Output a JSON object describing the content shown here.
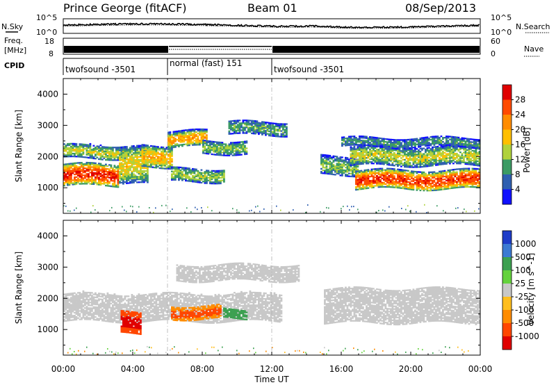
{
  "header": {
    "station": "Prince George (fitACF)",
    "beam": "Beam 01",
    "date": "08/Sep/2013"
  },
  "top_panels": {
    "nsky_label": "N.Sky",
    "nsearch_label": "N.Search",
    "nsky_ticks": [
      "10^5",
      "10^0"
    ],
    "nsky_right_ticks": [
      "10^5",
      "10^0"
    ],
    "freq_label_1": "Freq.",
    "freq_label_2": "[MHz]",
    "freq_ticks": [
      "18",
      "8"
    ],
    "nave_label": "Nave",
    "nave_ticks": [
      "60",
      "0"
    ],
    "cpid_label": "CPID",
    "cpid_segments": [
      {
        "label": "twofsound -3501",
        "start_hour": 0,
        "end_hour": 6
      },
      {
        "label": "normal (fast) 151",
        "start_hour": 6,
        "end_hour": 12
      },
      {
        "label": "twofsound -3501",
        "start_hour": 12,
        "end_hour": 24
      }
    ]
  },
  "colorbars": {
    "power": {
      "label": "Power [dB]",
      "ticks": [
        "28",
        "24",
        "20",
        "16",
        "12",
        "8",
        "4"
      ],
      "colors": [
        "#e00000",
        "#ff4a00",
        "#ff8c00",
        "#ffbf00",
        "#b0d23c",
        "#3c9b64",
        "#2f5fb0",
        "#1010ff"
      ]
    },
    "velocity": {
      "label": "Velocity [m s^-1]",
      "ticks": [
        "1000",
        "500",
        "100",
        "25",
        "-25",
        "-100",
        "-500",
        "-1000"
      ],
      "colors": [
        "#1e3cc8",
        "#3c7ad2",
        "#3ca050",
        "#64d23c",
        "#c8c8c8",
        "#ffbe1e",
        "#ff8c00",
        "#ff4600",
        "#e00000"
      ]
    }
  },
  "axes": {
    "x_label": "Time UT",
    "x_ticks": [
      "00:00",
      "04:00",
      "08:00",
      "12:00",
      "16:00",
      "20:00",
      "00:00"
    ],
    "y_label": "Slant Range [km]",
    "y_ticks": [
      "4000",
      "3000",
      "2000",
      "1000"
    ]
  },
  "chart_data": {
    "type": "heatmap",
    "x_range_hours": [
      0,
      24
    ],
    "y_range_km": [
      180,
      4500
    ],
    "mode_changes_hours": [
      6,
      12
    ],
    "panels": [
      {
        "name": "Power",
        "units": "dB",
        "scale": [
          0,
          30
        ],
        "bands": [
          {
            "start_hour": 0.0,
            "end_hour": 3.2,
            "center_km": 1400,
            "width_km": 700,
            "peak_value": 27
          },
          {
            "start_hour": 0.0,
            "end_hour": 3.6,
            "center_km": 2150,
            "width_km": 450,
            "peak_value": 14
          },
          {
            "start_hour": 3.2,
            "end_hour": 4.8,
            "center_km": 1700,
            "width_km": 1200,
            "peak_value": 16
          },
          {
            "start_hour": 4.5,
            "end_hour": 6.2,
            "center_km": 2000,
            "width_km": 700,
            "peak_value": 18
          },
          {
            "start_hour": 6.0,
            "end_hour": 8.2,
            "center_km": 2550,
            "width_km": 500,
            "peak_value": 20
          },
          {
            "start_hour": 8.0,
            "end_hour": 10.5,
            "center_km": 2300,
            "width_km": 450,
            "peak_value": 12
          },
          {
            "start_hour": 6.2,
            "end_hour": 9.2,
            "center_km": 1400,
            "width_km": 450,
            "peak_value": 13
          },
          {
            "start_hour": 9.5,
            "end_hour": 12.8,
            "center_km": 2900,
            "width_km": 450,
            "peak_value": 10
          },
          {
            "start_hour": 14.8,
            "end_hour": 17.0,
            "center_km": 1700,
            "width_km": 600,
            "peak_value": 12
          },
          {
            "start_hour": 16.8,
            "end_hour": 24.0,
            "center_km": 1250,
            "width_km": 600,
            "peak_value": 26
          },
          {
            "start_hour": 16.5,
            "end_hour": 24.0,
            "center_km": 2000,
            "width_km": 600,
            "peak_value": 14
          },
          {
            "start_hour": 16.0,
            "end_hour": 24.0,
            "center_km": 2450,
            "width_km": 300,
            "peak_value": 9
          }
        ]
      },
      {
        "name": "Velocity",
        "units": "m s^-1",
        "scale": [
          -1000,
          1000
        ],
        "bands": [
          {
            "start_hour": 0.0,
            "end_hour": 12.5,
            "center_km": 1700,
            "width_km": 900,
            "peak_value": 0
          },
          {
            "start_hour": 6.5,
            "end_hour": 13.5,
            "center_km": 2800,
            "width_km": 500,
            "peak_value": 0
          },
          {
            "start_hour": 6.2,
            "end_hour": 9.0,
            "center_km": 1550,
            "width_km": 450,
            "peak_value": -400
          },
          {
            "start_hour": 9.2,
            "end_hour": 10.5,
            "center_km": 1500,
            "width_km": 300,
            "peak_value": 200
          },
          {
            "start_hour": 3.3,
            "end_hour": 4.4,
            "center_km": 1200,
            "width_km": 700,
            "peak_value": -1000
          },
          {
            "start_hour": 15.0,
            "end_hour": 24.0,
            "center_km": 1750,
            "width_km": 1100,
            "peak_value": 0
          }
        ]
      }
    ]
  }
}
